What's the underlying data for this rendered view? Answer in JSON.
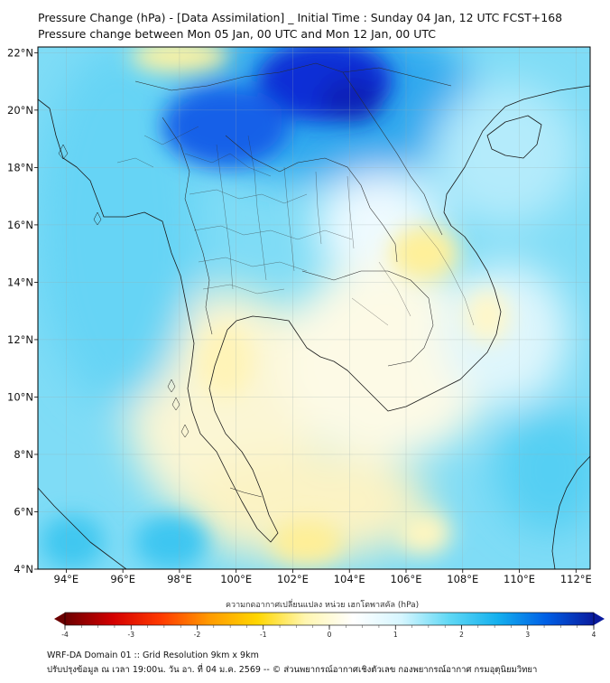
{
  "header": {
    "title": "Pressure Change (hPa) - [Data Assimilation] _ Initial Time : Sunday 04 Jan, 12 UTC FCST+168",
    "subtitle": "Pressure change between Mon 05 Jan, 00 UTC and Mon 12 Jan, 00 UTC"
  },
  "map": {
    "lon_range": [
      93,
      112.5
    ],
    "lat_range": [
      4,
      22.2
    ],
    "lon_ticks": [
      "94°E",
      "96°E",
      "98°E",
      "100°E",
      "102°E",
      "104°E",
      "106°E",
      "108°E",
      "110°E",
      "112°E"
    ],
    "lat_ticks": [
      "22°N",
      "20°N",
      "18°N",
      "16°N",
      "14°N",
      "12°N",
      "10°N",
      "8°N",
      "6°N",
      "4°N"
    ],
    "field": "pressure change",
    "gridlines": true
  },
  "colorbar": {
    "label": "ความกดอากาศเปลี่ยนแปลง หน่วย เฮกโตพาสคัล (hPa)",
    "ticks": [
      "-4",
      "-3",
      "-2",
      "-1",
      "0",
      "1",
      "2",
      "3",
      "4"
    ],
    "range": [
      -4,
      4
    ],
    "colors": [
      "#6b0000",
      "#d40000",
      "#ff3a00",
      "#ff9a00",
      "#ffd600",
      "#fff6b0",
      "#ffffff",
      "#d6f6ff",
      "#5fd8f5",
      "#15b0ee",
      "#0060e6",
      "#0a1b9e"
    ]
  },
  "footer": {
    "line1": "WRF-DA Domain 01 :: Grid Resolution 9km x 9km",
    "line2": "ปรับปรุงข้อมูล ณ เวลา 19:00น. วัน อา. ที่ 04 ม.ค. 2569 -- © ส่วนพยากรณ์อากาศเชิงตัวเลข กองพยากรณ์อากาศ กรมอุตุนิยมวิทยา"
  }
}
